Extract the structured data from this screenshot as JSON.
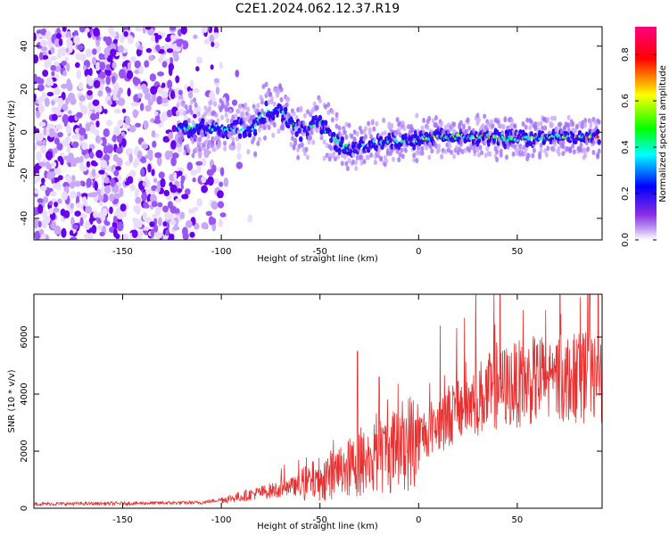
{
  "title": "C2E1.2024.062.12.37.R19",
  "chart_data": [
    {
      "type": "heatmap",
      "xlabel": "Height of straight line (km)",
      "ylabel": "Frequency (Hz)",
      "xlim": [
        -195,
        93
      ],
      "ylim": [
        -50,
        49
      ],
      "xticks": [
        -150,
        -100,
        -50,
        0,
        50
      ],
      "yticks": [
        -40,
        -20,
        0,
        20,
        40
      ],
      "colorbar": {
        "label": "Normalized spectral amplitude",
        "ticks": [
          "0.0",
          "0.2",
          "0.4",
          "0.6",
          "0.8"
        ],
        "range": [
          0,
          0.92
        ],
        "colors": [
          "#ffffff",
          "#8a2be2",
          "#0000ff",
          "#00ffff",
          "#00ff00",
          "#ffff00",
          "#ff0000",
          "#ff0080"
        ]
      },
      "ridge_center": [
        {
          "x": -120,
          "y": 2
        },
        {
          "x": -100,
          "y": 2
        },
        {
          "x": -85,
          "y": 1
        },
        {
          "x": -78,
          "y": 9
        },
        {
          "x": -70,
          "y": 10
        },
        {
          "x": -60,
          "y": 0
        },
        {
          "x": -50,
          "y": 5
        },
        {
          "x": -45,
          "y": -2
        },
        {
          "x": -35,
          "y": -8
        },
        {
          "x": -25,
          "y": -5
        },
        {
          "x": -10,
          "y": -4
        },
        {
          "x": 0,
          "y": -3
        },
        {
          "x": 10,
          "y": -2
        },
        {
          "x": 30,
          "y": -2
        },
        {
          "x": 50,
          "y": -3
        },
        {
          "x": 70,
          "y": -2
        },
        {
          "x": 90,
          "y": -2
        }
      ]
    },
    {
      "type": "line",
      "xlabel": "Height of straight line (km)",
      "ylabel": "SNR (10 * v/v)",
      "xlim": [
        -195,
        93
      ],
      "ylim": [
        0,
        7500
      ],
      "xticks": [
        -150,
        -100,
        -50,
        0,
        50
      ],
      "yticks": [
        0,
        2000,
        4000,
        6000
      ],
      "color": "#e83030",
      "trend": [
        {
          "x": -195,
          "y": 150
        },
        {
          "x": -150,
          "y": 170
        },
        {
          "x": -110,
          "y": 200
        },
        {
          "x": -95,
          "y": 350
        },
        {
          "x": -80,
          "y": 550
        },
        {
          "x": -60,
          "y": 800
        },
        {
          "x": -40,
          "y": 1300
        },
        {
          "x": -20,
          "y": 1800
        },
        {
          "x": 0,
          "y": 2500
        },
        {
          "x": 20,
          "y": 3500
        },
        {
          "x": 40,
          "y": 4200
        },
        {
          "x": 60,
          "y": 4500
        },
        {
          "x": 93,
          "y": 4600
        }
      ],
      "spikes": [
        {
          "x": -31,
          "y": 5500
        },
        {
          "x": -20,
          "y": 4600
        },
        {
          "x": 11,
          "y": 6400
        },
        {
          "x": 72,
          "y": 6800
        },
        {
          "x": 82,
          "y": 7400
        }
      ]
    }
  ]
}
